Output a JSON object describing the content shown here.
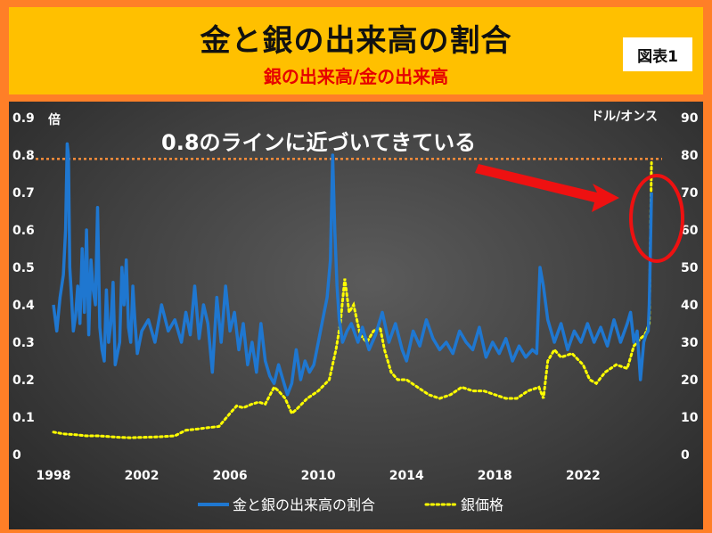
{
  "header": {
    "title": "金と銀の出来高の割合",
    "subtitle": "銀の出来高/金の出来高",
    "figure_label": "図表1"
  },
  "annotation": {
    "text": "0.8のラインに近づいてきている"
  },
  "colors": {
    "ratio_line": "#1f77d0",
    "silver_line": "#ffff00",
    "reference_line": "#ff8c3a",
    "callout": "#ee1111",
    "header_bg": "#ffc000",
    "frame_bg": "#ff7f27"
  },
  "chart_data": {
    "type": "line",
    "left_axis_unit": "倍",
    "right_axis_unit": "ドル/オンス",
    "xlim": [
      1998,
      2025.5
    ],
    "ylim_left": [
      0,
      0.9
    ],
    "ylim_right": [
      0,
      90
    ],
    "x_ticks": [
      "1998",
      "2002",
      "2006",
      "2010",
      "2014",
      "2018",
      "2022"
    ],
    "left_ticks": [
      "0",
      "0.1",
      "0.2",
      "0.3",
      "0.4",
      "0.5",
      "0.6",
      "0.7",
      "0.8",
      "0.9"
    ],
    "right_ticks": [
      "0",
      "10",
      "20",
      "30",
      "40",
      "50",
      "60",
      "70",
      "80",
      "90"
    ],
    "reference_line": {
      "axis": "left",
      "value": 0.79
    },
    "grid": false,
    "legend_position": "bottom-center",
    "series": [
      {
        "name": "金と銀の出来高の割合",
        "axis": "left",
        "style": "solid",
        "x": [
          1998.0,
          1998.15,
          1998.3,
          1998.45,
          1998.55,
          1998.62,
          1998.68,
          1998.74,
          1998.82,
          1998.9,
          1999.0,
          1999.1,
          1999.2,
          1999.3,
          1999.4,
          1999.5,
          1999.6,
          1999.7,
          1999.8,
          1999.9,
          2000.0,
          2000.1,
          2000.2,
          2000.3,
          2000.4,
          2000.5,
          2000.6,
          2000.7,
          2000.8,
          2000.9,
          2001.0,
          2001.1,
          2001.2,
          2001.3,
          2001.4,
          2001.5,
          2001.6,
          2001.7,
          2001.8,
          2001.9,
          2002.0,
          2002.3,
          2002.6,
          2002.9,
          2003.2,
          2003.5,
          2003.8,
          2004.0,
          2004.2,
          2004.4,
          2004.6,
          2004.8,
          2005.0,
          2005.2,
          2005.4,
          2005.6,
          2005.8,
          2006.0,
          2006.2,
          2006.4,
          2006.6,
          2006.8,
          2007.0,
          2007.2,
          2007.4,
          2007.6,
          2007.8,
          2008.0,
          2008.2,
          2008.4,
          2008.6,
          2008.8,
          2009.0,
          2009.2,
          2009.4,
          2009.6,
          2009.8,
          2010.0,
          2010.2,
          2010.4,
          2010.55,
          2010.65,
          2010.75,
          2010.85,
          2010.95,
          2011.1,
          2011.3,
          2011.5,
          2011.8,
          2012.0,
          2012.3,
          2012.6,
          2012.9,
          2013.2,
          2013.5,
          2013.8,
          2014.0,
          2014.3,
          2014.6,
          2014.9,
          2015.2,
          2015.5,
          2015.8,
          2016.1,
          2016.4,
          2016.7,
          2017.0,
          2017.3,
          2017.6,
          2017.9,
          2018.2,
          2018.5,
          2018.8,
          2019.1,
          2019.4,
          2019.7,
          2019.9,
          2020.05,
          2020.2,
          2020.4,
          2020.7,
          2021.0,
          2021.3,
          2021.6,
          2021.9,
          2022.2,
          2022.5,
          2022.8,
          2023.1,
          2023.4,
          2023.7,
          2024.0,
          2024.15,
          2024.3,
          2024.45,
          2024.6,
          2024.75,
          2024.85,
          2024.95,
          2025.0,
          2025.05,
          2025.1
        ],
        "values": [
          0.4,
          0.33,
          0.42,
          0.48,
          0.6,
          0.83,
          0.8,
          0.5,
          0.42,
          0.33,
          0.37,
          0.45,
          0.35,
          0.55,
          0.38,
          0.6,
          0.32,
          0.52,
          0.44,
          0.4,
          0.66,
          0.34,
          0.28,
          0.25,
          0.44,
          0.3,
          0.35,
          0.46,
          0.24,
          0.27,
          0.3,
          0.5,
          0.4,
          0.52,
          0.34,
          0.3,
          0.45,
          0.35,
          0.27,
          0.3,
          0.33,
          0.36,
          0.3,
          0.4,
          0.33,
          0.36,
          0.3,
          0.38,
          0.32,
          0.45,
          0.31,
          0.4,
          0.35,
          0.22,
          0.42,
          0.3,
          0.45,
          0.33,
          0.38,
          0.28,
          0.35,
          0.24,
          0.3,
          0.22,
          0.35,
          0.25,
          0.21,
          0.19,
          0.24,
          0.2,
          0.16,
          0.19,
          0.28,
          0.2,
          0.25,
          0.22,
          0.24,
          0.3,
          0.36,
          0.42,
          0.52,
          0.8,
          0.6,
          0.45,
          0.36,
          0.3,
          0.33,
          0.35,
          0.3,
          0.34,
          0.28,
          0.32,
          0.38,
          0.3,
          0.35,
          0.28,
          0.25,
          0.33,
          0.29,
          0.36,
          0.31,
          0.28,
          0.3,
          0.27,
          0.33,
          0.3,
          0.28,
          0.34,
          0.26,
          0.3,
          0.27,
          0.31,
          0.25,
          0.29,
          0.26,
          0.28,
          0.27,
          0.5,
          0.45,
          0.36,
          0.3,
          0.35,
          0.28,
          0.33,
          0.3,
          0.35,
          0.3,
          0.34,
          0.29,
          0.36,
          0.3,
          0.35,
          0.38,
          0.3,
          0.33,
          0.2,
          0.3,
          0.32,
          0.33,
          0.4,
          0.55,
          0.7
        ]
      },
      {
        "name": "銀価格",
        "axis": "right",
        "style": "dotted",
        "x": [
          1998.0,
          1998.5,
          1999.0,
          1999.5,
          2000.0,
          2000.5,
          2001.0,
          2001.5,
          2002.0,
          2002.5,
          2003.0,
          2003.5,
          2004.0,
          2004.5,
          2005.0,
          2005.5,
          2006.0,
          2006.3,
          2006.6,
          2007.0,
          2007.3,
          2007.6,
          2008.0,
          2008.2,
          2008.5,
          2008.8,
          2009.0,
          2009.5,
          2010.0,
          2010.5,
          2010.8,
          2011.0,
          2011.2,
          2011.4,
          2011.6,
          2011.9,
          2012.2,
          2012.5,
          2012.8,
          2013.0,
          2013.3,
          2013.6,
          2014.0,
          2014.5,
          2015.0,
          2015.5,
          2016.0,
          2016.5,
          2017.0,
          2017.5,
          2018.0,
          2018.5,
          2019.0,
          2019.5,
          2020.0,
          2020.2,
          2020.4,
          2020.7,
          2021.0,
          2021.5,
          2022.0,
          2022.3,
          2022.6,
          2023.0,
          2023.5,
          2024.0,
          2024.3,
          2024.6,
          2024.8,
          2025.0,
          2025.1
        ],
        "values": [
          6,
          5.5,
          5.3,
          5,
          5,
          4.8,
          4.6,
          4.5,
          4.6,
          4.7,
          4.8,
          5,
          6.5,
          6.8,
          7.2,
          7.5,
          11,
          13,
          12.5,
          13.5,
          14,
          13.5,
          18,
          17,
          15,
          11,
          12,
          15,
          17,
          20,
          28,
          35,
          47,
          38,
          40,
          32,
          30,
          33,
          34,
          28,
          22,
          20,
          20,
          18,
          16,
          15,
          16,
          18,
          17,
          17,
          16,
          15,
          15,
          17,
          18,
          15,
          25,
          28,
          26,
          27,
          24,
          20,
          19,
          22,
          24,
          23,
          29,
          31,
          32,
          35,
          78
        ]
      }
    ]
  }
}
